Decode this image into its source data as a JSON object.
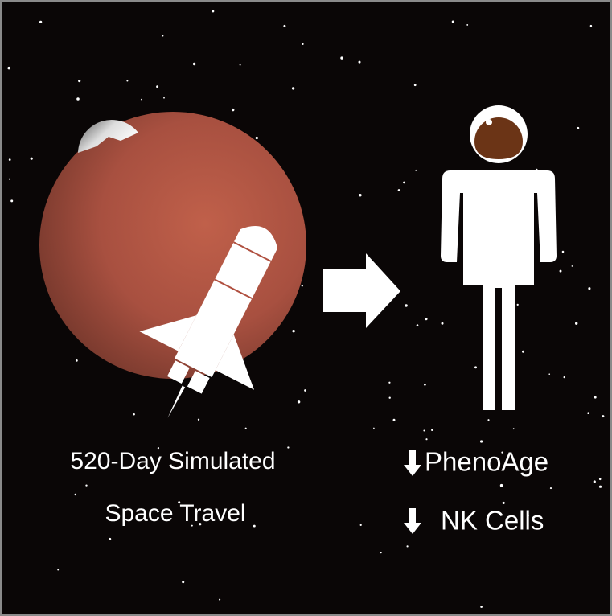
{
  "left_caption": [
    "520-Day Simulated",
    "Space Travel"
  ],
  "outcomes": [
    "PhenoAge",
    "NK Cells"
  ]
}
